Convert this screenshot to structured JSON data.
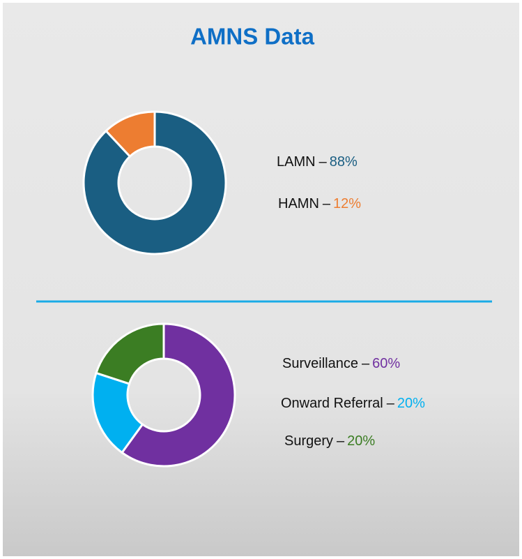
{
  "title": "AMNS Data",
  "chart_data": [
    {
      "type": "pie",
      "categories": [
        "LAMN",
        "HAMN"
      ],
      "values": [
        88,
        12
      ],
      "value_labels": [
        "88%",
        "12%"
      ],
      "colors": [
        "#1a5e82",
        "#ed7d31"
      ],
      "separator": "–"
    },
    {
      "type": "pie",
      "categories": [
        "Surveillance",
        "Onward Referral",
        "Surgery"
      ],
      "values": [
        60,
        20,
        20
      ],
      "value_labels": [
        "60%",
        "20%",
        "20%"
      ],
      "colors": [
        "#7030a0",
        "#00b0f0",
        "#3b7d23"
      ],
      "separator": "–"
    }
  ]
}
